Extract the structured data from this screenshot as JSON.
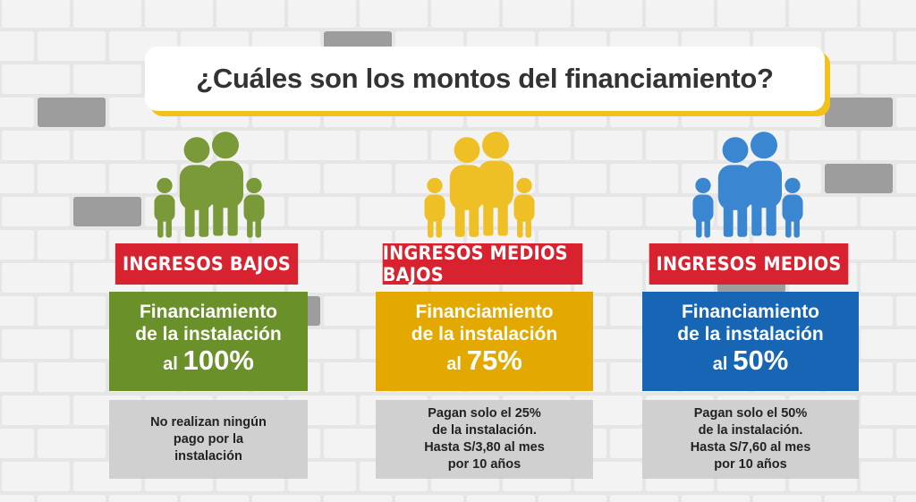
{
  "title": "¿Cuáles son los montos del financiamiento?",
  "columns": [
    {
      "label": "INGRESOS BAJOS",
      "financing": [
        "Financiamiento",
        "de la instalación"
      ],
      "prefix": "al",
      "percent": "100%",
      "note": [
        "No realizan ningún",
        "pago por la",
        "instalación"
      ]
    },
    {
      "label": "INGRESOS MEDIOS BAJOS",
      "financing": [
        "Financiamiento",
        "de la instalación"
      ],
      "prefix": "al",
      "percent": "75%",
      "note": [
        "Pagan solo el 25%",
        "de la instalación.",
        "Hasta S/3,80 al mes",
        "por 10 años"
      ]
    },
    {
      "label": "INGRESOS MEDIOS",
      "financing": [
        "Financiamiento",
        "de la instalación"
      ],
      "prefix": "al",
      "percent": "50%",
      "note": [
        "Pagan solo el 50%",
        "de la instalación.",
        "Hasta S/7,60 al mes",
        "por 10 años"
      ]
    }
  ]
}
